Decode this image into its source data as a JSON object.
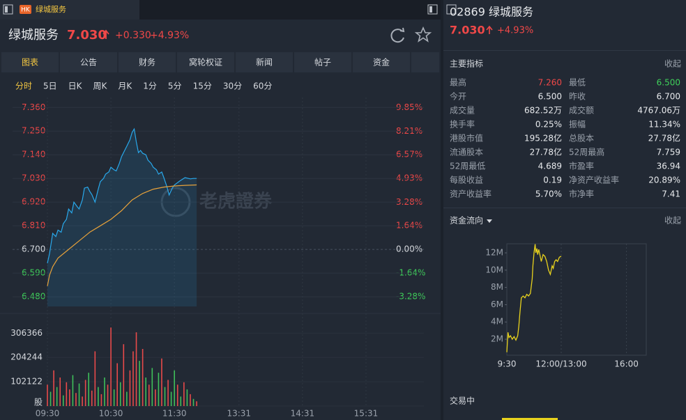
{
  "tab": {
    "badge": "HK",
    "name": "绿城服务"
  },
  "header": {
    "name": "绿城服务",
    "price": "7.030",
    "change": "+0.330",
    "change_pct": "+4.93%"
  },
  "tabs": [
    "图表",
    "公告",
    "财务",
    "窝轮权证",
    "新闻",
    "帖子",
    "资金"
  ],
  "periods": [
    "分时",
    "5日",
    "日K",
    "周K",
    "月K",
    "1分",
    "5分",
    "15分",
    "30分",
    "60分"
  ],
  "intraday": {
    "type": "line",
    "watermark": "老虎證券",
    "xlim": [
      0,
      330
    ],
    "xticks": [
      {
        "value": 0,
        "label": "09:30"
      },
      {
        "value": 60,
        "label": "10:30"
      },
      {
        "value": 120,
        "label": "11:30"
      },
      {
        "value": 181,
        "label": "13:31"
      },
      {
        "value": 241,
        "label": "14:31"
      },
      {
        "value": 301,
        "label": "15:31"
      }
    ],
    "ylim": [
      6.435,
      7.39
    ],
    "yticks": [
      {
        "value": 7.36,
        "label": "7.360"
      },
      {
        "value": 7.25,
        "label": "7.250"
      },
      {
        "value": 7.14,
        "label": "7.140"
      },
      {
        "value": 7.03,
        "label": "7.030"
      },
      {
        "value": 6.92,
        "label": "6.920"
      },
      {
        "value": 6.81,
        "label": "6.810"
      },
      {
        "value": 6.7,
        "label": "6.700"
      },
      {
        "value": 6.59,
        "label": "6.590"
      },
      {
        "value": 6.48,
        "label": "6.480"
      }
    ],
    "y2lim": [
      -3.955,
      10.3
    ],
    "y2ticks": [
      {
        "value": 9.85,
        "label": "9.85%"
      },
      {
        "value": 8.21,
        "label": "8.21%"
      },
      {
        "value": 6.57,
        "label": "6.57%"
      },
      {
        "value": 4.93,
        "label": "4.93%"
      },
      {
        "value": 3.28,
        "label": "3.28%"
      },
      {
        "value": 1.64,
        "label": "1.64%"
      },
      {
        "value": 0,
        "label": "0.00%"
      },
      {
        "value": -1.64,
        "label": "-1.64%"
      },
      {
        "value": -3.28,
        "label": "-3.28%"
      }
    ],
    "series": [
      {
        "color": "#29a9ec",
        "area": true,
        "x": [
          0,
          2,
          5,
          8,
          10,
          13,
          15,
          18,
          20,
          23,
          25,
          28,
          30,
          33,
          35,
          38,
          40,
          42,
          45,
          48,
          50,
          53,
          55,
          58,
          60,
          63,
          65,
          68,
          70,
          73,
          75,
          78,
          80,
          82,
          84,
          86,
          88,
          90,
          93,
          95,
          98,
          100,
          103,
          105,
          108,
          110,
          113,
          115,
          118,
          120,
          125,
          130,
          135,
          138,
          141
        ],
        "values": [
          6.636,
          6.68,
          6.775,
          6.76,
          6.79,
          6.78,
          6.82,
          6.84,
          6.888,
          6.87,
          6.92,
          6.9,
          6.888,
          6.93,
          6.985,
          6.99,
          6.97,
          6.955,
          6.92,
          6.98,
          7.015,
          7.03,
          7.05,
          7.06,
          7.082,
          7.07,
          7.065,
          7.1,
          7.131,
          7.16,
          7.18,
          7.21,
          7.244,
          7.26,
          7.2,
          7.15,
          7.16,
          7.147,
          7.14,
          7.115,
          7.1,
          7.082,
          7.07,
          7.05,
          7.06,
          7.034,
          6.99,
          6.953,
          6.985,
          7.0,
          7.018,
          7.034,
          7.028,
          7.03,
          7.03
        ]
      },
      {
        "color": "#e8a23a",
        "x": [
          0,
          2,
          5,
          10,
          20,
          30,
          40,
          50,
          60,
          70,
          80,
          90,
          100,
          110,
          120,
          130,
          141
        ],
        "values": [
          6.53,
          6.58,
          6.62,
          6.66,
          6.7,
          6.74,
          6.78,
          6.81,
          6.84,
          6.88,
          6.93,
          6.96,
          6.98,
          6.99,
          6.995,
          6.998,
          7.0
        ]
      }
    ]
  },
  "volume": {
    "type": "bar",
    "xlim": [
      0,
      330
    ],
    "ylim": [
      0,
      360000
    ],
    "yticks": [
      306366,
      204244,
      102122,
      {
        "value": 0,
        "label": "股"
      }
    ],
    "x": [
      0,
      3,
      6,
      9,
      12,
      15,
      18,
      21,
      24,
      27,
      30,
      33,
      36,
      39,
      42,
      45,
      48,
      51,
      54,
      57,
      60,
      63,
      66,
      69,
      72,
      75,
      78,
      81,
      84,
      87,
      90,
      93,
      96,
      99,
      102,
      105,
      108,
      111,
      114,
      117,
      120,
      123,
      126,
      129,
      132,
      135,
      138,
      141
    ],
    "values": [
      90000,
      60000,
      150000,
      80000,
      120000,
      45000,
      100000,
      70000,
      130000,
      55000,
      95000,
      40000,
      110000,
      140000,
      65000,
      230000,
      80000,
      50000,
      120000,
      90000,
      330000,
      70000,
      180000,
      100000,
      260000,
      60000,
      150000,
      230000,
      310000,
      190000,
      240000,
      120000,
      90000,
      160000,
      70000,
      140000,
      200000,
      80000,
      110000,
      60000,
      150000,
      90000,
      40000,
      100000,
      70000,
      50000,
      30000,
      20000
    ],
    "colors": [
      "#e84a4a",
      "#3fbf5a",
      "#e84a4a",
      "#3fbf5a",
      "#e84a4a",
      "#3fbf5a",
      "#e84a4a",
      "#e84a4a",
      "#3fbf5a",
      "#e84a4a",
      "#3fbf5a",
      "#e84a4a",
      "#e84a4a",
      "#3fbf5a",
      "#e84a4a",
      "#e84a4a",
      "#3fbf5a",
      "#e84a4a",
      "#3fbf5a",
      "#e84a4a",
      "#e84a4a",
      "#3fbf5a",
      "#e84a4a",
      "#3fbf5a",
      "#e84a4a",
      "#3fbf5a",
      "#e84a4a",
      "#e84a4a",
      "#e84a4a",
      "#3fbf5a",
      "#e84a4a",
      "#3fbf5a",
      "#e84a4a",
      "#3fbf5a",
      "#e84a4a",
      "#3fbf5a",
      "#e84a4a",
      "#3fbf5a",
      "#e84a4a",
      "#3fbf5a",
      "#3fbf5a",
      "#e84a4a",
      "#3fbf5a",
      "#e84a4a",
      "#3fbf5a",
      "#e84a4a",
      "#3fbf5a",
      "#e84a4a"
    ]
  },
  "quote": {
    "title": "02869 绿城服务",
    "price": "7.030",
    "change_pct": "+4.93%"
  },
  "indicators": {
    "title": "主要指标",
    "toggle": "收起",
    "rows": [
      [
        {
          "label": "最高",
          "value": "7.260",
          "color": "#f04848"
        },
        {
          "label": "最低",
          "value": "6.500",
          "color": "#3fcf5a"
        }
      ],
      [
        {
          "label": "今开",
          "value": "6.500"
        },
        {
          "label": "昨收",
          "value": "6.700"
        }
      ],
      [
        {
          "label": "成交量",
          "value": "682.52万"
        },
        {
          "label": "成交额",
          "value": "4767.06万"
        }
      ],
      [
        {
          "label": "换手率",
          "value": "0.25%"
        },
        {
          "label": "振幅",
          "value": "11.34%"
        }
      ],
      [
        {
          "label": "港股市值",
          "value": "195.28亿"
        },
        {
          "label": "总股本",
          "value": "27.78亿"
        }
      ],
      [
        {
          "label": "流通股本",
          "value": "27.78亿"
        },
        {
          "label": "52周最高",
          "value": "7.759"
        }
      ],
      [
        {
          "label": "52周最低",
          "value": "4.689"
        },
        {
          "label": "市盈率",
          "value": "36.94"
        }
      ],
      [
        {
          "label": "每股收益",
          "value": "0.19"
        },
        {
          "label": "净资产收益率",
          "value": "20.89%"
        }
      ],
      [
        {
          "label": "资产收益率",
          "value": "5.70%"
        },
        {
          "label": "市净率",
          "value": "7.41"
        }
      ]
    ]
  },
  "fund_flow": {
    "type": "line",
    "title": "资金流向",
    "toggle": "收起",
    "color": "#e8d21d",
    "xlim": [
      0,
      330
    ],
    "xticks": [
      {
        "value": 0,
        "label": "9:30"
      },
      {
        "value": 150,
        "label": "12:00/13:00"
      },
      {
        "value": 330,
        "label": "16:00"
      }
    ],
    "ylim": [
      150000,
      13050000
    ],
    "yticks": [
      {
        "value": 2000000,
        "label": "2M"
      },
      {
        "value": 4000000,
        "label": "4M"
      },
      {
        "value": 6000000,
        "label": "6M"
      },
      {
        "value": 8000000,
        "label": "8M"
      },
      {
        "value": 10000000,
        "label": "10M"
      },
      {
        "value": 12000000,
        "label": "12M"
      }
    ],
    "x": [
      0,
      3,
      6,
      10,
      15,
      20,
      25,
      30,
      33,
      36,
      40,
      45,
      50,
      55,
      60,
      65,
      70,
      72,
      75,
      78,
      80,
      83,
      85,
      88,
      90,
      95,
      100,
      105,
      110,
      115,
      120,
      125,
      128,
      132,
      136,
      140,
      145,
      150
    ],
    "values": [
      500000,
      2800000,
      2200000,
      2400000,
      2000000,
      2300000,
      1900000,
      2400000,
      3500000,
      5000000,
      6800000,
      7000000,
      6800000,
      7200000,
      7000000,
      7300000,
      9000000,
      10500000,
      12000000,
      13000000,
      12000000,
      12500000,
      11800000,
      12400000,
      12000000,
      11000000,
      11800000,
      11600000,
      11000000,
      10000000,
      9500000,
      10500000,
      10200000,
      11000000,
      11200000,
      11000000,
      11500000,
      11600000
    ]
  },
  "status": "交易中"
}
